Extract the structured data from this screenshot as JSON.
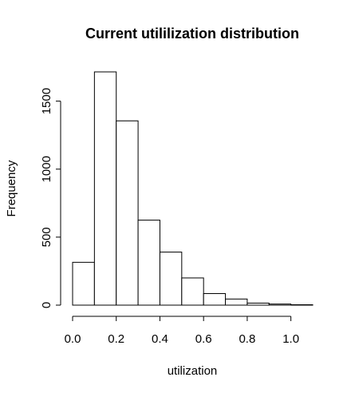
{
  "chart_data": {
    "type": "bar",
    "title": "Current utililization distribution",
    "xlabel": "utilization",
    "ylabel": "Frequency",
    "bins": [
      {
        "start": 0.0,
        "end": 0.1,
        "value": 315
      },
      {
        "start": 0.1,
        "end": 0.2,
        "value": 1715
      },
      {
        "start": 0.2,
        "end": 0.3,
        "value": 1355
      },
      {
        "start": 0.3,
        "end": 0.4,
        "value": 625
      },
      {
        "start": 0.4,
        "end": 0.5,
        "value": 390
      },
      {
        "start": 0.5,
        "end": 0.6,
        "value": 200
      },
      {
        "start": 0.6,
        "end": 0.7,
        "value": 85
      },
      {
        "start": 0.7,
        "end": 0.8,
        "value": 45
      },
      {
        "start": 0.8,
        "end": 0.9,
        "value": 15
      },
      {
        "start": 0.9,
        "end": 1.0,
        "value": 8
      },
      {
        "start": 1.0,
        "end": 1.1,
        "value": 3
      }
    ],
    "x_ticks": [
      "0.0",
      "0.2",
      "0.4",
      "0.6",
      "0.8",
      "1.0"
    ],
    "y_ticks": [
      "0",
      "500",
      "1000",
      "1500"
    ],
    "xlim": [
      0,
      1.1
    ],
    "ylim": [
      0,
      1715
    ],
    "grid": false,
    "bar_fill": "#ffffff",
    "bar_stroke": "#000000"
  }
}
